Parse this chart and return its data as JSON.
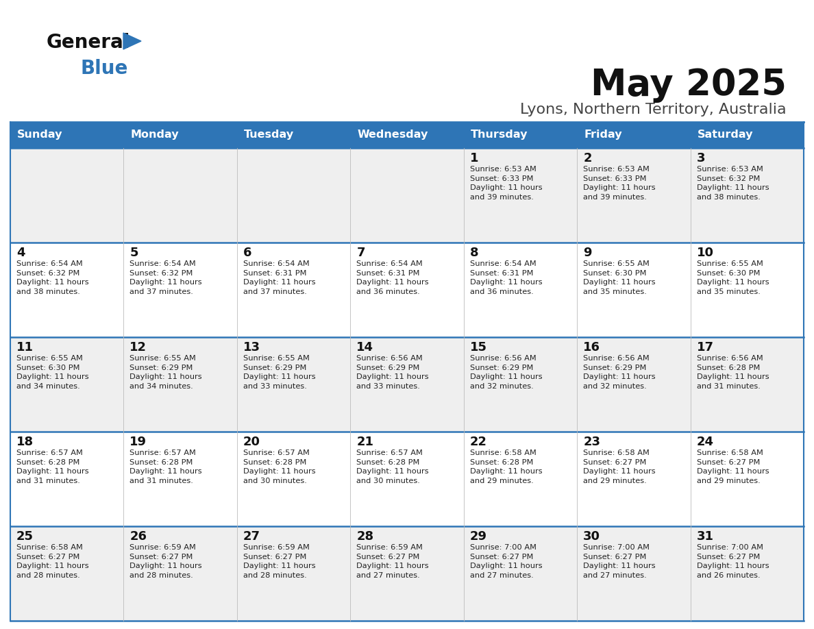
{
  "title": "May 2025",
  "subtitle": "Lyons, Northern Territory, Australia",
  "days_of_week": [
    "Sunday",
    "Monday",
    "Tuesday",
    "Wednesday",
    "Thursday",
    "Friday",
    "Saturday"
  ],
  "header_bg": "#2E75B6",
  "header_text_color": "#FFFFFF",
  "row_bg_odd": "#F0F0F0",
  "row_bg_even": "#FFFFFF",
  "cell_border_color": "#2E75B6",
  "day_number_color": "#000000",
  "cell_text_color": "#333333",
  "title_color": "#000000",
  "subtitle_color": "#333333",
  "calendar": [
    [
      {
        "day": null,
        "info": null
      },
      {
        "day": null,
        "info": null
      },
      {
        "day": null,
        "info": null
      },
      {
        "day": null,
        "info": null
      },
      {
        "day": 1,
        "info": "Sunrise: 6:53 AM\nSunset: 6:33 PM\nDaylight: 11 hours\nand 39 minutes."
      },
      {
        "day": 2,
        "info": "Sunrise: 6:53 AM\nSunset: 6:33 PM\nDaylight: 11 hours\nand 39 minutes."
      },
      {
        "day": 3,
        "info": "Sunrise: 6:53 AM\nSunset: 6:32 PM\nDaylight: 11 hours\nand 38 minutes."
      }
    ],
    [
      {
        "day": 4,
        "info": "Sunrise: 6:54 AM\nSunset: 6:32 PM\nDaylight: 11 hours\nand 38 minutes."
      },
      {
        "day": 5,
        "info": "Sunrise: 6:54 AM\nSunset: 6:32 PM\nDaylight: 11 hours\nand 37 minutes."
      },
      {
        "day": 6,
        "info": "Sunrise: 6:54 AM\nSunset: 6:31 PM\nDaylight: 11 hours\nand 37 minutes."
      },
      {
        "day": 7,
        "info": "Sunrise: 6:54 AM\nSunset: 6:31 PM\nDaylight: 11 hours\nand 36 minutes."
      },
      {
        "day": 8,
        "info": "Sunrise: 6:54 AM\nSunset: 6:31 PM\nDaylight: 11 hours\nand 36 minutes."
      },
      {
        "day": 9,
        "info": "Sunrise: 6:55 AM\nSunset: 6:30 PM\nDaylight: 11 hours\nand 35 minutes."
      },
      {
        "day": 10,
        "info": "Sunrise: 6:55 AM\nSunset: 6:30 PM\nDaylight: 11 hours\nand 35 minutes."
      }
    ],
    [
      {
        "day": 11,
        "info": "Sunrise: 6:55 AM\nSunset: 6:30 PM\nDaylight: 11 hours\nand 34 minutes."
      },
      {
        "day": 12,
        "info": "Sunrise: 6:55 AM\nSunset: 6:29 PM\nDaylight: 11 hours\nand 34 minutes."
      },
      {
        "day": 13,
        "info": "Sunrise: 6:55 AM\nSunset: 6:29 PM\nDaylight: 11 hours\nand 33 minutes."
      },
      {
        "day": 14,
        "info": "Sunrise: 6:56 AM\nSunset: 6:29 PM\nDaylight: 11 hours\nand 33 minutes."
      },
      {
        "day": 15,
        "info": "Sunrise: 6:56 AM\nSunset: 6:29 PM\nDaylight: 11 hours\nand 32 minutes."
      },
      {
        "day": 16,
        "info": "Sunrise: 6:56 AM\nSunset: 6:29 PM\nDaylight: 11 hours\nand 32 minutes."
      },
      {
        "day": 17,
        "info": "Sunrise: 6:56 AM\nSunset: 6:28 PM\nDaylight: 11 hours\nand 31 minutes."
      }
    ],
    [
      {
        "day": 18,
        "info": "Sunrise: 6:57 AM\nSunset: 6:28 PM\nDaylight: 11 hours\nand 31 minutes."
      },
      {
        "day": 19,
        "info": "Sunrise: 6:57 AM\nSunset: 6:28 PM\nDaylight: 11 hours\nand 31 minutes."
      },
      {
        "day": 20,
        "info": "Sunrise: 6:57 AM\nSunset: 6:28 PM\nDaylight: 11 hours\nand 30 minutes."
      },
      {
        "day": 21,
        "info": "Sunrise: 6:57 AM\nSunset: 6:28 PM\nDaylight: 11 hours\nand 30 minutes."
      },
      {
        "day": 22,
        "info": "Sunrise: 6:58 AM\nSunset: 6:28 PM\nDaylight: 11 hours\nand 29 minutes."
      },
      {
        "day": 23,
        "info": "Sunrise: 6:58 AM\nSunset: 6:27 PM\nDaylight: 11 hours\nand 29 minutes."
      },
      {
        "day": 24,
        "info": "Sunrise: 6:58 AM\nSunset: 6:27 PM\nDaylight: 11 hours\nand 29 minutes."
      }
    ],
    [
      {
        "day": 25,
        "info": "Sunrise: 6:58 AM\nSunset: 6:27 PM\nDaylight: 11 hours\nand 28 minutes."
      },
      {
        "day": 26,
        "info": "Sunrise: 6:59 AM\nSunset: 6:27 PM\nDaylight: 11 hours\nand 28 minutes."
      },
      {
        "day": 27,
        "info": "Sunrise: 6:59 AM\nSunset: 6:27 PM\nDaylight: 11 hours\nand 28 minutes."
      },
      {
        "day": 28,
        "info": "Sunrise: 6:59 AM\nSunset: 6:27 PM\nDaylight: 11 hours\nand 27 minutes."
      },
      {
        "day": 29,
        "info": "Sunrise: 7:00 AM\nSunset: 6:27 PM\nDaylight: 11 hours\nand 27 minutes."
      },
      {
        "day": 30,
        "info": "Sunrise: 7:00 AM\nSunset: 6:27 PM\nDaylight: 11 hours\nand 27 minutes."
      },
      {
        "day": 31,
        "info": "Sunrise: 7:00 AM\nSunset: 6:27 PM\nDaylight: 11 hours\nand 26 minutes."
      }
    ]
  ]
}
